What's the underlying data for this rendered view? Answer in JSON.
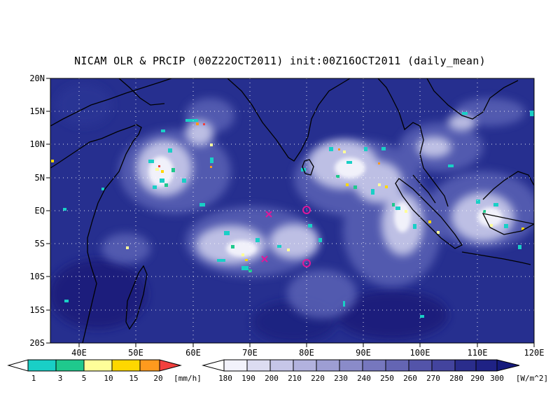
{
  "title": "NICAM OLR & PRCIP (00Z22OCT2011) init:00Z16OCT2011 (daily_mean)",
  "map": {
    "lon_range": [
      35,
      120
    ],
    "lat_range": [
      -20,
      20
    ],
    "lat_labels": [
      "20N",
      "15N",
      "10N",
      "5N",
      "EQ",
      "5S",
      "10S",
      "15S",
      "20S"
    ],
    "lon_labels": [
      "40E",
      "50E",
      "60E",
      "70E",
      "80E",
      "90E",
      "100E",
      "110E",
      "120E"
    ],
    "background_color": "#262f8f",
    "markers": [
      {
        "type": "x",
        "lon": 73,
        "lat": -0.7,
        "color": "#e0189a"
      },
      {
        "type": "x",
        "lon": 72.3,
        "lat": -7.4,
        "color": "#e0189a"
      },
      {
        "type": "circle",
        "lon": 80,
        "lat": 0,
        "color": "#e0189a"
      },
      {
        "type": "circle",
        "lon": 80,
        "lat": -8,
        "color": "#e0189a"
      }
    ]
  },
  "precip_colorbar": {
    "labels": [
      "1",
      "3",
      "5",
      "10",
      "15",
      "20"
    ],
    "unit": "[mm/h]",
    "colors": [
      "#19cfc6",
      "#1fc98d",
      "#fefe99",
      "#fed700",
      "#fe9a1e",
      "#f2403e"
    ]
  },
  "olr_colorbar": {
    "labels": [
      "180",
      "190",
      "200",
      "210",
      "220",
      "230",
      "240",
      "250",
      "260",
      "270",
      "280",
      "290",
      "300"
    ],
    "unit": "[W/m^2]",
    "colors": [
      "#f2f2fb",
      "#dcdcf1",
      "#c6c6e8",
      "#b2b2de",
      "#9d9ed3",
      "#8a8bc9",
      "#7677be",
      "#6465b3",
      "#5354a9",
      "#43449e",
      "#353895",
      "#2a2d8c",
      "#1f2285",
      "#151a7c"
    ]
  }
}
